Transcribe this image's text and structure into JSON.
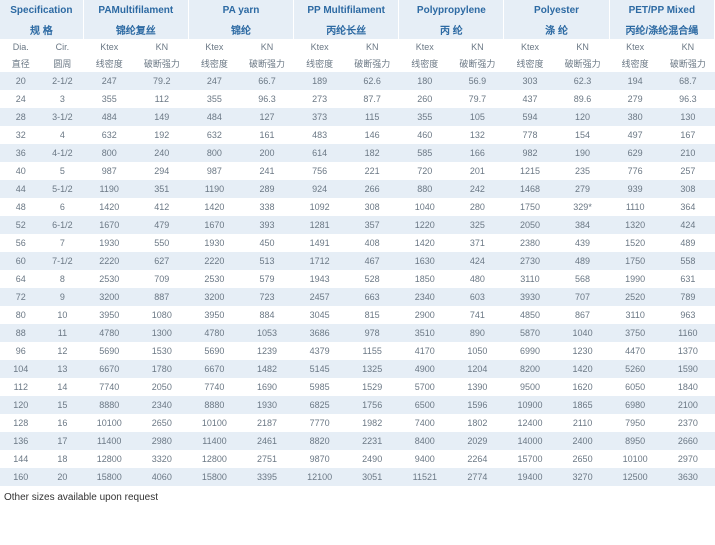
{
  "type": "table",
  "background_color": "#ffffff",
  "header_bg": "#e6eef6",
  "header_fg": "#2d6aa3",
  "body_fg": "#6b7885",
  "stripe_bg": "#e6eef6",
  "font_family": "Arial, sans-serif",
  "header_fontsize": 10,
  "body_fontsize": 9,
  "groups": [
    {
      "en": "Specification",
      "cn": "规 格"
    },
    {
      "en": "PAMultifilament",
      "cn": "锦纶复丝"
    },
    {
      "en": "PA yarn",
      "cn": "锦纶"
    },
    {
      "en": "PP Multifilament",
      "cn": "丙纶长丝"
    },
    {
      "en": "Polypropylene",
      "cn": "丙 纶"
    },
    {
      "en": "Polyester",
      "cn": "涤 纶"
    },
    {
      "en": "PET/PP Mixed",
      "cn": "丙纶/涤纶混合绳"
    }
  ],
  "sub_en": [
    "Dia.",
    "Cir.",
    "Ktex",
    "KN",
    "Ktex",
    "KN",
    "Ktex",
    "KN",
    "Ktex",
    "KN",
    "Ktex",
    "KN",
    "Ktex",
    "KN"
  ],
  "sub_cn": [
    "直径",
    "圆周",
    "线密度",
    "破断强力",
    "线密度",
    "破断强力",
    "线密度",
    "破断强力",
    "线密度",
    "破断强力",
    "线密度",
    "破断强力",
    "线密度",
    "破断强力"
  ],
  "rows": [
    [
      "20",
      "2-1/2",
      "247",
      "79.2",
      "247",
      "66.7",
      "189",
      "62.6",
      "180",
      "56.9",
      "303",
      "62.3",
      "194",
      "68.7"
    ],
    [
      "24",
      "3",
      "355",
      "112",
      "355",
      "96.3",
      "273",
      "87.7",
      "260",
      "79.7",
      "437",
      "89.6",
      "279",
      "96.3"
    ],
    [
      "28",
      "3-1/2",
      "484",
      "149",
      "484",
      "127",
      "373",
      "115",
      "355",
      "105",
      "594",
      "120",
      "380",
      "130"
    ],
    [
      "32",
      "4",
      "632",
      "192",
      "632",
      "161",
      "483",
      "146",
      "460",
      "132",
      "778",
      "154",
      "497",
      "167"
    ],
    [
      "36",
      "4-1/2",
      "800",
      "240",
      "800",
      "200",
      "614",
      "182",
      "585",
      "166",
      "982",
      "190",
      "629",
      "210"
    ],
    [
      "40",
      "5",
      "987",
      "294",
      "987",
      "241",
      "756",
      "221",
      "720",
      "201",
      "1215",
      "235",
      "776",
      "257"
    ],
    [
      "44",
      "5-1/2",
      "1190",
      "351",
      "1190",
      "289",
      "924",
      "266",
      "880",
      "242",
      "1468",
      "279",
      "939",
      "308"
    ],
    [
      "48",
      "6",
      "1420",
      "412",
      "1420",
      "338",
      "1092",
      "308",
      "1040",
      "280",
      "1750",
      "329*",
      "1110",
      "364"
    ],
    [
      "52",
      "6-1/2",
      "1670",
      "479",
      "1670",
      "393",
      "1281",
      "357",
      "1220",
      "325",
      "2050",
      "384",
      "1320",
      "424"
    ],
    [
      "56",
      "7",
      "1930",
      "550",
      "1930",
      "450",
      "1491",
      "408",
      "1420",
      "371",
      "2380",
      "439",
      "1520",
      "489"
    ],
    [
      "60",
      "7-1/2",
      "2220",
      "627",
      "2220",
      "513",
      "1712",
      "467",
      "1630",
      "424",
      "2730",
      "489",
      "1750",
      "558"
    ],
    [
      "64",
      "8",
      "2530",
      "709",
      "2530",
      "579",
      "1943",
      "528",
      "1850",
      "480",
      "3110",
      "568",
      "1990",
      "631"
    ],
    [
      "72",
      "9",
      "3200",
      "887",
      "3200",
      "723",
      "2457",
      "663",
      "2340",
      "603",
      "3930",
      "707",
      "2520",
      "789"
    ],
    [
      "80",
      "10",
      "3950",
      "1080",
      "3950",
      "884",
      "3045",
      "815",
      "2900",
      "741",
      "4850",
      "867",
      "3110",
      "963"
    ],
    [
      "88",
      "11",
      "4780",
      "1300",
      "4780",
      "1053",
      "3686",
      "978",
      "3510",
      "890",
      "5870",
      "1040",
      "3750",
      "1160"
    ],
    [
      "96",
      "12",
      "5690",
      "1530",
      "5690",
      "1239",
      "4379",
      "1155",
      "4170",
      "1050",
      "6990",
      "1230",
      "4470",
      "1370"
    ],
    [
      "104",
      "13",
      "6670",
      "1780",
      "6670",
      "1482",
      "5145",
      "1325",
      "4900",
      "1204",
      "8200",
      "1420",
      "5260",
      "1590"
    ],
    [
      "112",
      "14",
      "7740",
      "2050",
      "7740",
      "1690",
      "5985",
      "1529",
      "5700",
      "1390",
      "9500",
      "1620",
      "6050",
      "1840"
    ],
    [
      "120",
      "15",
      "8880",
      "2340",
      "8880",
      "1930",
      "6825",
      "1756",
      "6500",
      "1596",
      "10900",
      "1865",
      "6980",
      "2100"
    ],
    [
      "128",
      "16",
      "10100",
      "2650",
      "10100",
      "2187",
      "7770",
      "1982",
      "7400",
      "1802",
      "12400",
      "2110",
      "7950",
      "2370"
    ],
    [
      "136",
      "17",
      "11400",
      "2980",
      "11400",
      "2461",
      "8820",
      "2231",
      "8400",
      "2029",
      "14000",
      "2400",
      "8950",
      "2660"
    ],
    [
      "144",
      "18",
      "12800",
      "3320",
      "12800",
      "2751",
      "9870",
      "2490",
      "9400",
      "2264",
      "15700",
      "2650",
      "10100",
      "2970"
    ],
    [
      "160",
      "20",
      "15800",
      "4060",
      "15800",
      "3395",
      "12100",
      "3051",
      "11521",
      "2774",
      "19400",
      "3270",
      "12500",
      "3630"
    ]
  ],
  "footnote": "Other sizes available upon request"
}
